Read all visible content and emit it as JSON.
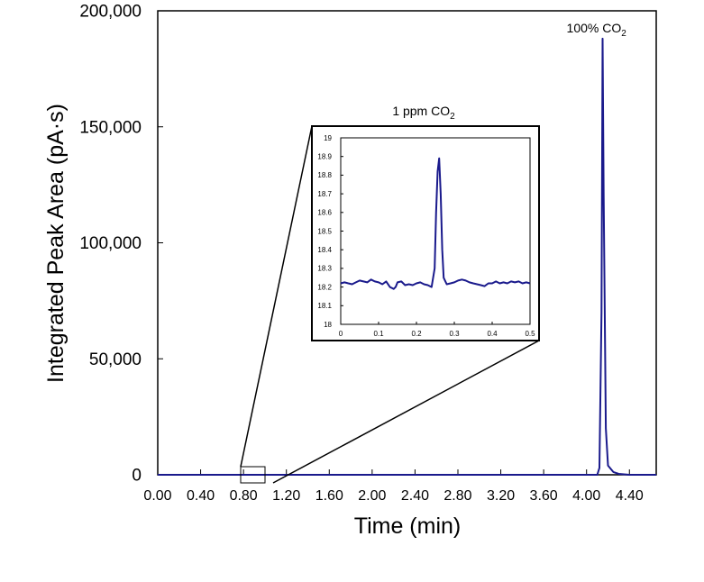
{
  "chart_data": [
    {
      "type": "line",
      "title": "",
      "xlabel": "Time (min)",
      "ylabel": "Integrated Peak Area (pA·s)",
      "xlim": [
        0,
        4.65
      ],
      "ylim": [
        0,
        200000
      ],
      "xticks": [
        0,
        0.4,
        0.8,
        1.2,
        1.6,
        2.0,
        2.4,
        2.8,
        3.2,
        3.6,
        4.0,
        4.4
      ],
      "xtick_labels": [
        "0.00",
        "0.40",
        "0.80",
        "1.20",
        "1.60",
        "2.00",
        "2.40",
        "2.80",
        "3.20",
        "3.60",
        "4.00",
        "4.40"
      ],
      "yticks": [
        0,
        50000,
        100000,
        150000,
        200000
      ],
      "ytick_labels": [
        "0",
        "50,000",
        "100,000",
        "150,000",
        "200,000"
      ],
      "grid": false,
      "annotation": {
        "text": "100% CO",
        "sub": "2",
        "x": 4.15,
        "y": 192000
      },
      "zoom_box": {
        "x": [
          0.8,
          1.0
        ],
        "y": [
          -3000,
          3000
        ]
      },
      "series": [
        {
          "name": "100% CO2",
          "color": "#1a1a8c",
          "x": [
            0,
            4.05,
            4.1,
            4.12,
            4.14,
            4.15,
            4.16,
            4.18,
            4.2,
            4.25,
            4.3,
            4.4,
            4.65
          ],
          "y": [
            0,
            0,
            0,
            3000,
            70000,
            188000,
            120000,
            20000,
            4000,
            1200,
            400,
            0,
            0
          ]
        }
      ]
    },
    {
      "type": "line",
      "title": "1 ppm CO",
      "title_sub": "2",
      "xlim": [
        0,
        0.5
      ],
      "ylim": [
        18,
        19
      ],
      "xticks": [
        0,
        0.1,
        0.2,
        0.3,
        0.4,
        0.5
      ],
      "xtick_labels": [
        "0",
        "0.1",
        "0.2",
        "0.3",
        "0.4",
        "0.5"
      ],
      "yticks": [
        18,
        18.1,
        18.2,
        18.3,
        18.4,
        18.5,
        18.6,
        18.7,
        18.8,
        18.9,
        19
      ],
      "ytick_labels": [
        "18",
        "18.1",
        "18.2",
        "18.3",
        "18.4",
        "18.5",
        "18.6",
        "18.7",
        "18.8",
        "18.9",
        "19"
      ],
      "grid": false,
      "series": [
        {
          "name": "1 ppm CO2",
          "color": "#1a1a8c",
          "x": [
            0,
            0.01,
            0.02,
            0.03,
            0.04,
            0.05,
            0.06,
            0.07,
            0.08,
            0.09,
            0.1,
            0.11,
            0.12,
            0.13,
            0.14,
            0.145,
            0.15,
            0.16,
            0.17,
            0.18,
            0.19,
            0.2,
            0.21,
            0.22,
            0.23,
            0.24,
            0.248,
            0.252,
            0.256,
            0.26,
            0.264,
            0.268,
            0.272,
            0.28,
            0.29,
            0.3,
            0.31,
            0.32,
            0.33,
            0.34,
            0.35,
            0.36,
            0.37,
            0.38,
            0.39,
            0.4,
            0.41,
            0.42,
            0.43,
            0.44,
            0.45,
            0.46,
            0.47,
            0.48,
            0.49,
            0.5
          ],
          "y": [
            18.22,
            18.225,
            18.22,
            18.215,
            18.225,
            18.235,
            18.23,
            18.225,
            18.24,
            18.23,
            18.225,
            18.215,
            18.23,
            18.2,
            18.19,
            18.2,
            18.225,
            18.23,
            18.21,
            18.215,
            18.21,
            18.22,
            18.225,
            18.215,
            18.21,
            18.2,
            18.3,
            18.6,
            18.82,
            18.89,
            18.7,
            18.4,
            18.25,
            18.215,
            18.22,
            18.225,
            18.235,
            18.24,
            18.235,
            18.225,
            18.22,
            18.215,
            18.21,
            18.205,
            18.22,
            18.22,
            18.23,
            18.22,
            18.225,
            18.22,
            18.23,
            18.225,
            18.23,
            18.22,
            18.225,
            18.22
          ]
        }
      ]
    }
  ]
}
